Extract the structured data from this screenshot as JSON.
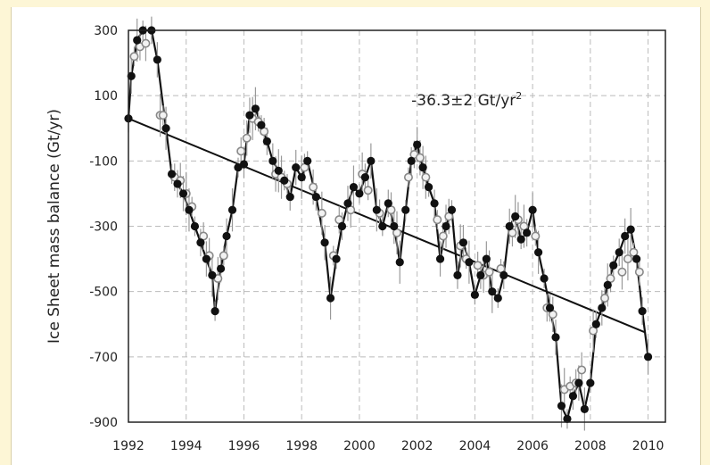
{
  "chart_data": {
    "type": "scatter",
    "title": "",
    "xlabel": "",
    "ylabel": "Ice Sheet mass balance (Gt/yr)",
    "xlim": [
      1992,
      2010.6
    ],
    "ylim": [
      -900,
      300
    ],
    "x_ticks": [
      "1992",
      "1994",
      "1996",
      "1998",
      "2000",
      "2002",
      "2004",
      "2006",
      "2008",
      "2010"
    ],
    "y_ticks": [
      "300",
      "100",
      "-100",
      "-300",
      "-500",
      "-700",
      "-900"
    ],
    "grid": true,
    "annotation": {
      "main": "-36.3±2 Gt/yr",
      "exp": "2"
    },
    "trend": {
      "x": [
        1992,
        2009.9
      ],
      "y": [
        30,
        -625
      ]
    },
    "series": [
      {
        "name": "",
        "marker": "filled-circle",
        "color": "#111111",
        "x": [
          1992.0,
          1992.1,
          1992.3,
          1992.5,
          1992.8,
          1993.0,
          1993.3,
          1993.5,
          1993.7,
          1993.9,
          1994.1,
          1994.3,
          1994.5,
          1994.7,
          1994.9,
          1995.0,
          1995.2,
          1995.4,
          1995.6,
          1995.8,
          1996.0,
          1996.2,
          1996.4,
          1996.6,
          1996.8,
          1997.0,
          1997.2,
          1997.4,
          1997.6,
          1997.8,
          1998.0,
          1998.2,
          1998.5,
          1998.8,
          1999.0,
          1999.2,
          1999.4,
          1999.6,
          1999.8,
          2000.0,
          2000.2,
          2000.4,
          2000.6,
          2000.8,
          2001.0,
          2001.2,
          2001.4,
          2001.6,
          2001.8,
          2002.0,
          2002.2,
          2002.4,
          2002.6,
          2002.8,
          2003.0,
          2003.2,
          2003.4,
          2003.6,
          2003.8,
          2004.0,
          2004.2,
          2004.4,
          2004.6,
          2004.8,
          2005.0,
          2005.2,
          2005.4,
          2005.6,
          2005.8,
          2006.0,
          2006.2,
          2006.4,
          2006.6,
          2006.8,
          2007.0,
          2007.2,
          2007.4,
          2007.6,
          2007.8,
          2008.0,
          2008.2,
          2008.4,
          2008.6,
          2008.8,
          2009.0,
          2009.2,
          2009.4,
          2009.6,
          2009.8,
          2010.0
        ],
        "y": [
          30,
          160,
          270,
          300,
          300,
          210,
          0,
          -140,
          -170,
          -200,
          -250,
          -300,
          -350,
          -400,
          -450,
          -560,
          -430,
          -330,
          -250,
          -120,
          -110,
          40,
          60,
          10,
          -40,
          -100,
          -130,
          -160,
          -210,
          -120,
          -150,
          -100,
          -210,
          -350,
          -520,
          -400,
          -300,
          -230,
          -180,
          -200,
          -150,
          -100,
          -250,
          -300,
          -230,
          -300,
          -410,
          -250,
          -100,
          -50,
          -120,
          -180,
          -230,
          -400,
          -300,
          -250,
          -450,
          -350,
          -410,
          -510,
          -450,
          -400,
          -500,
          -520,
          -450,
          -300,
          -270,
          -340,
          -320,
          -250,
          -380,
          -460,
          -550,
          -640,
          -850,
          -890,
          -820,
          -780,
          -860,
          -780,
          -600,
          -550,
          -480,
          -420,
          -380,
          -330,
          -310,
          -400,
          -560,
          -700
        ]
      },
      {
        "name": "",
        "marker": "open-circle",
        "color": "#888888",
        "x": [
          1992.2,
          1992.4,
          1992.6,
          1993.1,
          1993.2,
          1993.6,
          1993.8,
          1994.0,
          1994.2,
          1994.6,
          1994.8,
          1995.1,
          1995.3,
          1995.9,
          1996.1,
          1996.3,
          1996.5,
          1996.7,
          1997.1,
          1997.3,
          1997.5,
          1998.1,
          1998.4,
          1998.7,
          1999.1,
          1999.3,
          1999.7,
          2000.1,
          2000.3,
          2000.7,
          2001.1,
          2001.3,
          2001.7,
          2001.9,
          2002.1,
          2002.3,
          2002.7,
          2002.9,
          2003.1,
          2003.5,
          2003.7,
          2004.1,
          2004.3,
          2004.5,
          2004.9,
          2005.3,
          2005.5,
          2005.7,
          2006.1,
          2006.5,
          2006.7,
          2007.1,
          2007.3,
          2007.5,
          2007.7,
          2008.1,
          2008.5,
          2008.7,
          2009.1,
          2009.3,
          2009.5,
          2009.7
        ],
        "y": [
          220,
          250,
          260,
          40,
          40,
          -150,
          -160,
          -200,
          -240,
          -330,
          -390,
          -460,
          -390,
          -70,
          -30,
          30,
          20,
          -10,
          -140,
          -150,
          -170,
          -120,
          -180,
          -260,
          -390,
          -280,
          -250,
          -140,
          -190,
          -260,
          -250,
          -320,
          -150,
          -80,
          -90,
          -150,
          -280,
          -330,
          -270,
          -360,
          -400,
          -420,
          -450,
          -440,
          -430,
          -320,
          -280,
          -300,
          -330,
          -550,
          -570,
          -800,
          -790,
          -780,
          -740,
          -620,
          -520,
          -460,
          -440,
          -400,
          -380,
          -440
        ]
      }
    ]
  }
}
